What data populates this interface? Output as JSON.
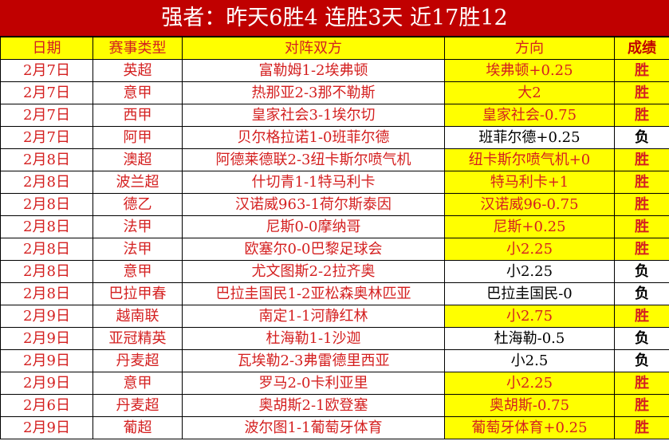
{
  "title": "强者：昨天6胜4 连胜3天 近17胜12",
  "headers": [
    "日期",
    "赛事类型",
    "对阵双方",
    "方向",
    "成绩"
  ],
  "colors": {
    "title_bg": "#c00000",
    "highlight": "#ffff00",
    "text_red": "#d42020"
  },
  "rows": [
    {
      "date": "2月7日",
      "league": "英超",
      "match": "富勒姆1-2埃弗顿",
      "pick": "埃弗顿+0.25",
      "result": "胜"
    },
    {
      "date": "2月7日",
      "league": "意甲",
      "match": "热那亚2-3那不勒斯",
      "pick": "大2",
      "result": "胜"
    },
    {
      "date": "2月7日",
      "league": "西甲",
      "match": "皇家社会3-1埃尔切",
      "pick": "皇家社会-0.75",
      "result": "胜"
    },
    {
      "date": "2月7日",
      "league": "阿甲",
      "match": "贝尔格拉诺1-0班菲尔德",
      "pick": "班菲尔德+0.25",
      "result": "负"
    },
    {
      "date": "2月8日",
      "league": "澳超",
      "match": "阿德莱德联2-3纽卡斯尔喷气机",
      "pick": "纽卡斯尔喷气机+0",
      "result": "胜"
    },
    {
      "date": "2月8日",
      "league": "波兰超",
      "match": "什切青1-1特马利卡",
      "pick": "特马利卡+1",
      "result": "胜"
    },
    {
      "date": "2月8日",
      "league": "德乙",
      "match": "汉诺威963-1荷尔斯泰因",
      "pick": "汉诺威96-0.75",
      "result": "胜"
    },
    {
      "date": "2月8日",
      "league": "法甲",
      "match": "尼斯0-0摩纳哥",
      "pick": "尼斯+0.25",
      "result": "胜"
    },
    {
      "date": "2月8日",
      "league": "法甲",
      "match": "欧塞尔0-0巴黎足球会",
      "pick": "小2.25",
      "result": "胜"
    },
    {
      "date": "2月8日",
      "league": "意甲",
      "match": "尤文图斯2-2拉齐奥",
      "pick": "小2.25",
      "result": "负"
    },
    {
      "date": "2月8日",
      "league": "巴拉甲春",
      "match": "巴拉圭国民1-2亚松森奥林匹亚",
      "pick": "巴拉圭国民-0",
      "result": "负"
    },
    {
      "date": "2月9日",
      "league": "越南联",
      "match": "南定1-1河静红林",
      "pick": "小2.75",
      "result": "胜"
    },
    {
      "date": "2月9日",
      "league": "亚冠精英",
      "match": "杜海勒1-1沙迦",
      "pick": "杜海勒-0.5",
      "result": "负"
    },
    {
      "date": "2月9日",
      "league": "丹麦超",
      "match": "瓦埃勒2-3弗雷德里西亚",
      "pick": "小2.5",
      "result": "负"
    },
    {
      "date": "2月9日",
      "league": "意甲",
      "match": "罗马2-0卡利亚里",
      "pick": "小2.25",
      "result": "胜"
    },
    {
      "date": "2月6日",
      "league": "丹麦超",
      "match": "奥胡斯2-1欧登塞",
      "pick": "奥胡斯-0.75",
      "result": "胜"
    },
    {
      "date": "2月9日",
      "league": "葡超",
      "match": "波尔图1-1葡萄牙体育",
      "pick": "葡萄牙体育+0.25",
      "result": "胜"
    }
  ]
}
